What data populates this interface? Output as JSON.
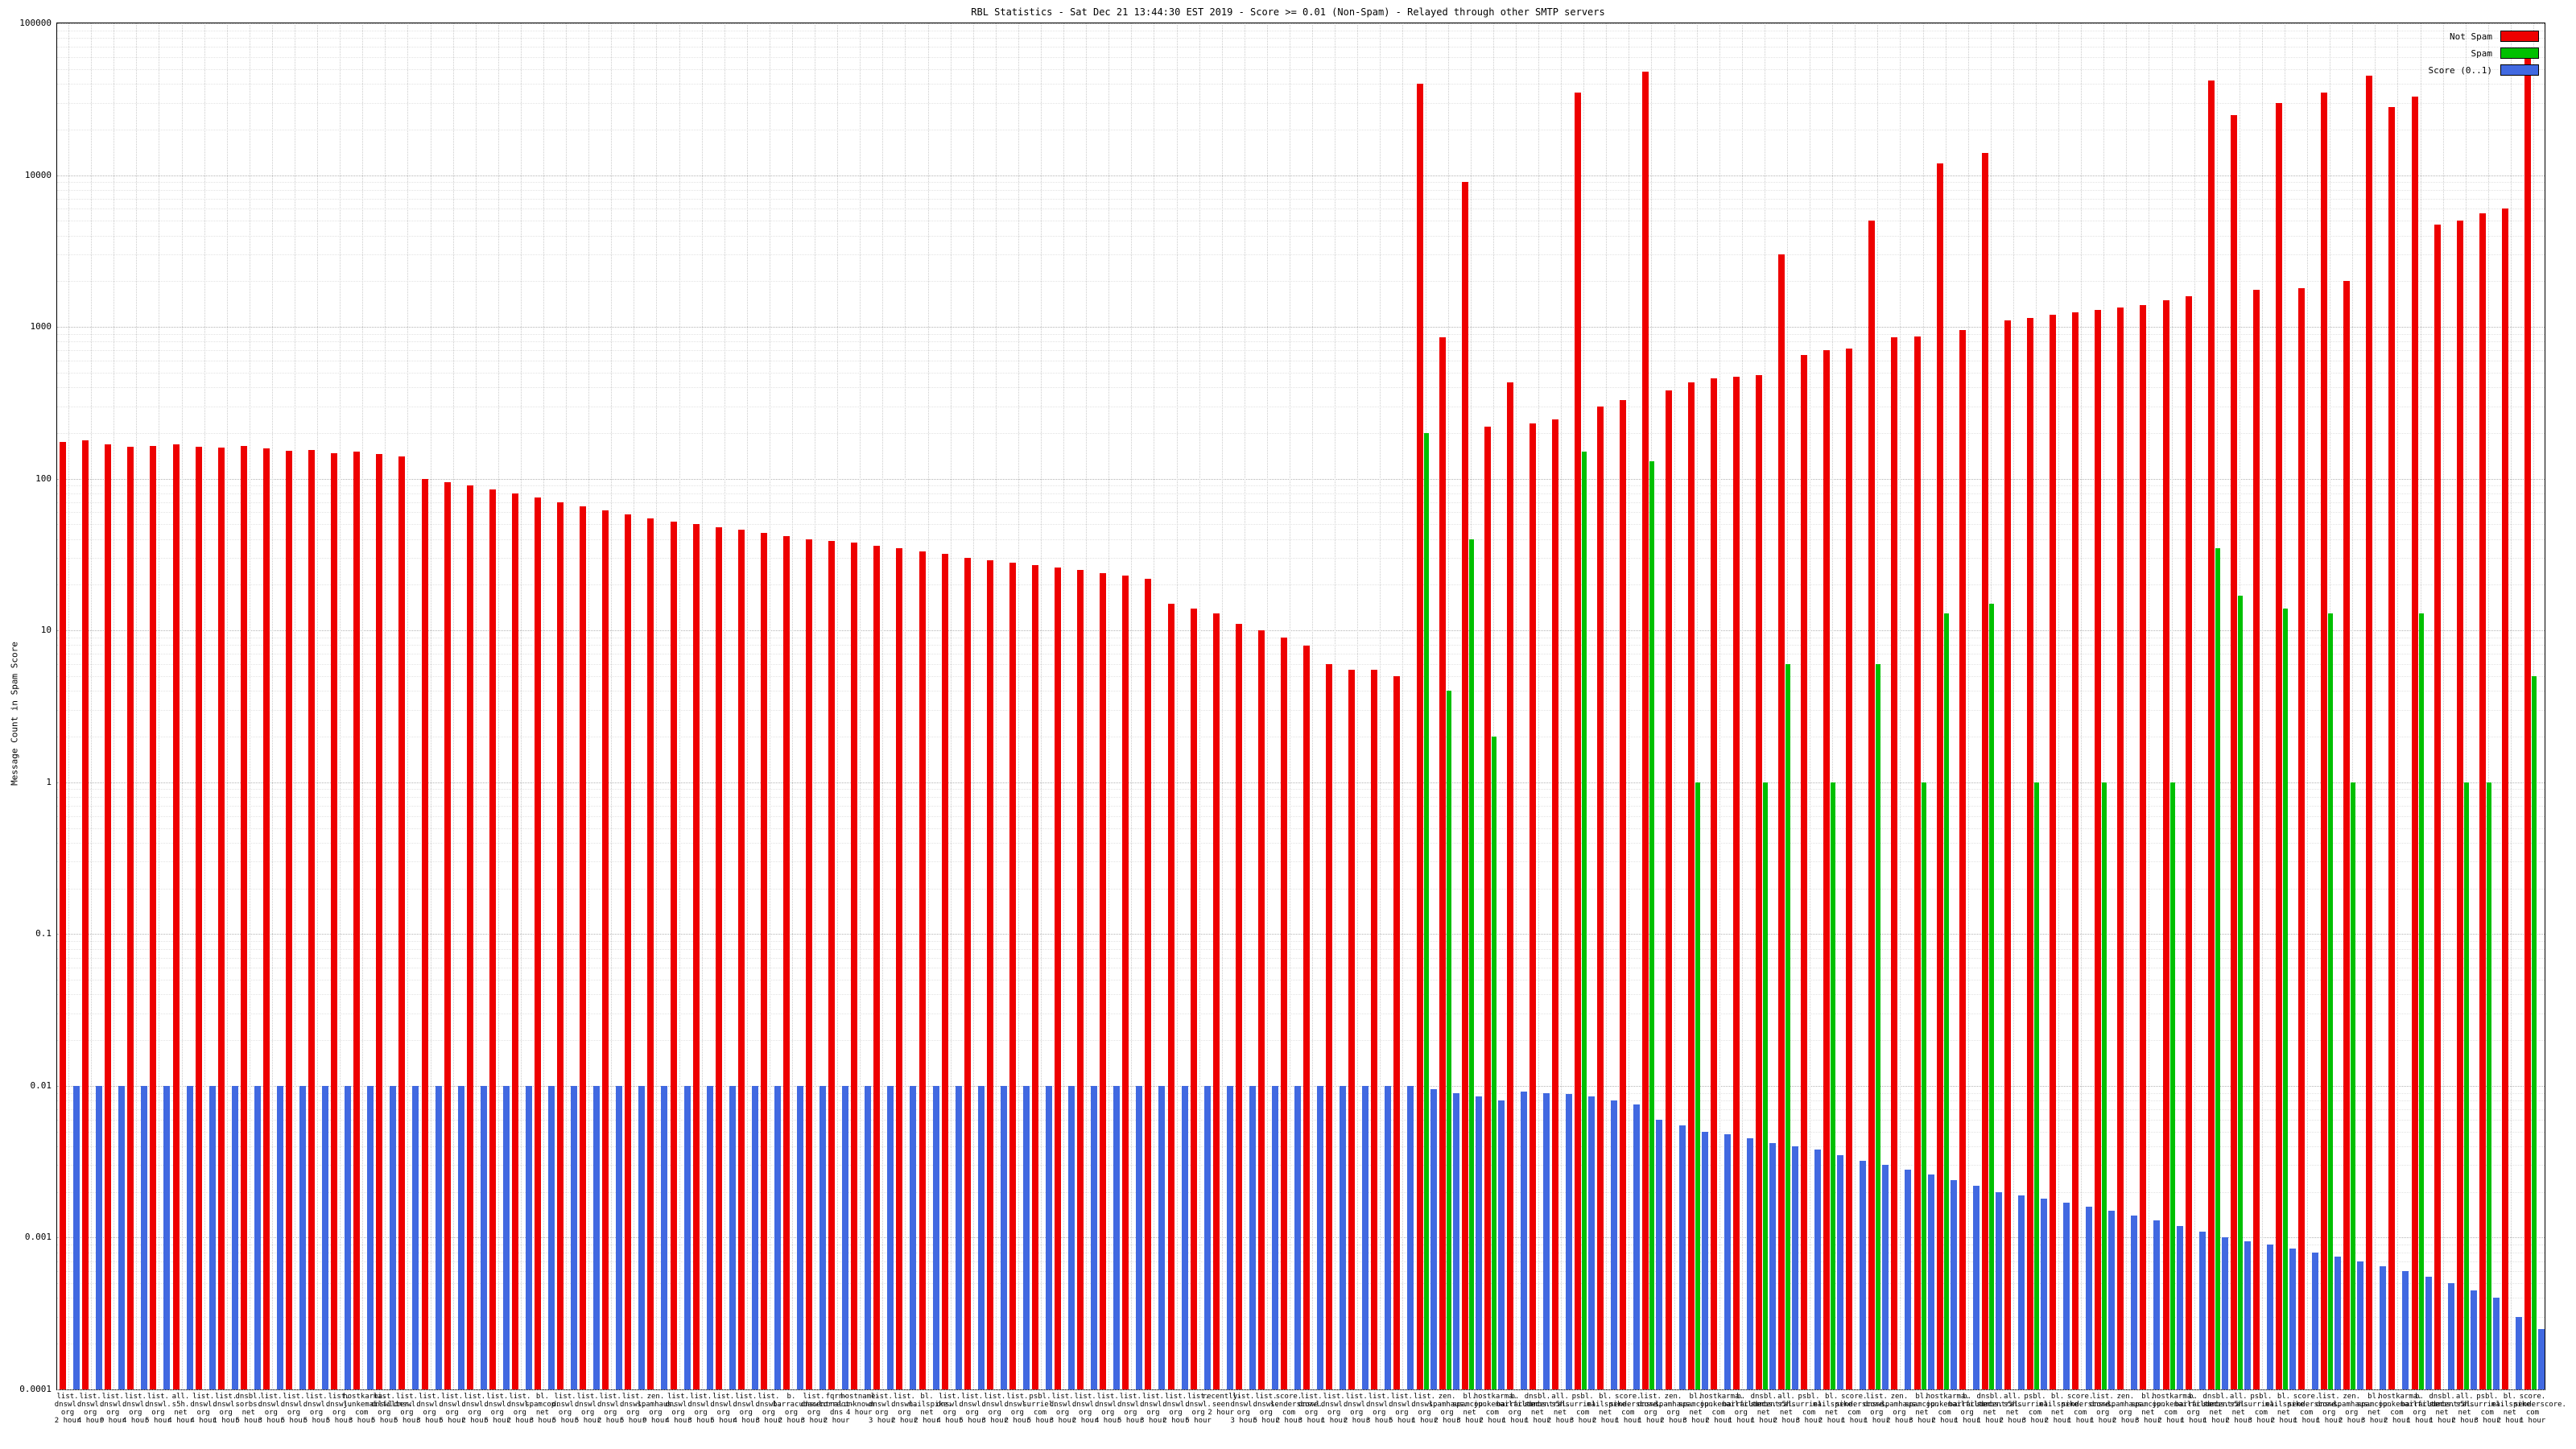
{
  "chart_data": {
    "type": "bar",
    "title": "RBL Statistics - Sat Dec 21 13:44:30 EST 2019 - Score >= 0.01 (Non-Spam) - Relayed through other SMTP servers",
    "ylabel": "Message Count in Spam Score",
    "xlabel": "",
    "y_scale": "log",
    "ylim": [
      0.0001,
      100000
    ],
    "yticks": [
      "0.0001",
      "0.001",
      "0.01",
      "0.1",
      "1",
      "10",
      "100",
      "1000",
      "10000",
      "100000"
    ],
    "grid": true,
    "legend_position": "top-right",
    "categories": [
      [
        "list.dnswl.org",
        "2 hour"
      ],
      [
        "list.dnswl.org",
        "4 hour"
      ],
      [
        "list.dnswl.org",
        "9 hour"
      ],
      [
        "list.dnswl.org",
        "4 hour"
      ],
      [
        "list.dnswl.org",
        "5 hour"
      ],
      [
        "all.s5h.net",
        "4 hour"
      ],
      [
        "list.dnswl.org",
        "4 hour"
      ],
      [
        "list.dnswl.org",
        "1 hour"
      ],
      [
        "dnsbl.sorbs.net",
        "5 hour"
      ],
      [
        "list.dnswl.org",
        "3 hour"
      ],
      [
        "list.dnswl.org",
        "5 hour"
      ],
      [
        "list.dnswl.org",
        "5 hour"
      ],
      [
        "list.dnswl.org",
        "5 hour"
      ],
      [
        "hostkarma.junkemailfilter.com",
        "3 hour"
      ],
      [
        "list.dnswl.org",
        "5 hour"
      ],
      [
        "list.dnswl.org",
        "5 hour"
      ],
      [
        "list.dnswl.org",
        "3 hour"
      ],
      [
        "list.dnswl.org",
        "5 hour"
      ],
      [
        "list.dnswl.org",
        "2 hour"
      ],
      [
        "list.dnswl.org",
        "5 hour"
      ],
      [
        "list.dnswl.org",
        "2 hour"
      ],
      [
        "bl.spamcop.net",
        "3 hour"
      ],
      [
        "list.dnswl.org",
        "5 hour"
      ],
      [
        "list.dnswl.org",
        "5 hour"
      ],
      [
        "list.dnswl.org",
        "2 hour"
      ],
      [
        "list.dnswl.org",
        "5 hour"
      ],
      [
        "zen.spamhaus.org",
        "9 hour"
      ],
      [
        "list.dnswl.org",
        "4 hour"
      ],
      [
        "list.dnswl.org",
        "3 hour"
      ],
      [
        "list.dnswl.org",
        "5 hour"
      ],
      [
        "list.dnswl.org",
        "4 hour"
      ],
      [
        "list.dnswl.org",
        "3 hour"
      ],
      [
        "b.barracudacentral.org",
        "2 hour"
      ],
      [
        "list.dnswl.org",
        "3 hour"
      ],
      [
        "fqrn-correct-dns",
        "2 hour"
      ],
      [
        "hostname-unknown",
        "4 hour"
      ],
      [
        "list.dnswl.org",
        "3 hour"
      ],
      [
        "list.dnswl.org",
        "2 hour"
      ],
      [
        "bl.mailspike.net",
        "2 hour"
      ],
      [
        "list.dnswl.org",
        "4 hour"
      ],
      [
        "list.dnswl.org",
        "5 hour"
      ],
      [
        "list.dnswl.org",
        "3 hour"
      ],
      [
        "list.dnswl.org",
        "2 hour"
      ],
      [
        "psbl.surriel.com",
        "5 hour"
      ],
      [
        "list.dnswl.org",
        "3 hour"
      ],
      [
        "list.dnswl.org",
        "2 hour"
      ],
      [
        "list.dnswl.org",
        "4 hour"
      ],
      [
        "list.dnswl.org",
        "5 hour"
      ],
      [
        "list.dnswl.org",
        "3 hour"
      ],
      [
        "list.dnswl.org",
        "2 hour"
      ],
      [
        "list.dnswl.org",
        "5 hour"
      ],
      [
        "recently-seen",
        "2 hour"
      ],
      [
        "list.dnswl.org",
        "3 hour"
      ],
      [
        "list.dnswl.org",
        "5 hour"
      ],
      [
        "score.senderscore.com",
        "2 hour"
      ],
      [
        "list.dnswl.org",
        "3 hour"
      ],
      [
        "list.dnswl.org",
        "1 hour"
      ],
      [
        "list.dnswl.org",
        "2 hour"
      ],
      [
        "list.dnswl.org",
        "3 hour"
      ],
      [
        "list.dnswl.org",
        "5 hour"
      ],
      [
        "list.dnswl.org",
        "1 hour"
      ],
      [
        "zen.spamhaus.org",
        "2 hour"
      ],
      [
        "bl.spamcop.net",
        "3 hour"
      ],
      [
        "hostkarma.junkemailfilter.com",
        "2 hour"
      ],
      [
        "b.barracudacentral.org",
        "1 hour"
      ],
      [
        "dnsbl.sorbs.net",
        "1 hour"
      ],
      [
        "all.s5h.net",
        "2 hour"
      ],
      [
        "psbl.surriel.com",
        "3 hour"
      ],
      [
        "bl.mailspike.net",
        "2 hour"
      ],
      [
        "score.senderscore.com",
        "1 hour"
      ],
      [
        "list.dnswl.org",
        "1 hour"
      ],
      [
        "zen.spamhaus.org",
        "2 hour"
      ],
      [
        "bl.spamcop.net",
        "3 hour"
      ],
      [
        "hostkarma.junkemailfilter.com",
        "2 hour"
      ],
      [
        "b.barracudacentral.org",
        "1 hour"
      ],
      [
        "dnsbl.sorbs.net",
        "1 hour"
      ],
      [
        "all.s5h.net",
        "2 hour"
      ],
      [
        "psbl.surriel.com",
        "3 hour"
      ],
      [
        "bl.mailspike.net",
        "2 hour"
      ],
      [
        "score.senderscore.com",
        "1 hour"
      ],
      [
        "list.dnswl.org",
        "1 hour"
      ],
      [
        "zen.spamhaus.org",
        "2 hour"
      ],
      [
        "bl.spamcop.net",
        "3 hour"
      ],
      [
        "hostkarma.junkemailfilter.com",
        "2 hour"
      ],
      [
        "b.barracudacentral.org",
        "1 hour"
      ],
      [
        "dnsbl.sorbs.net",
        "1 hour"
      ],
      [
        "all.s5h.net",
        "2 hour"
      ],
      [
        "psbl.surriel.com",
        "3 hour"
      ],
      [
        "bl.mailspike.net",
        "2 hour"
      ],
      [
        "score.senderscore.com",
        "1 hour"
      ],
      [
        "list.dnswl.org",
        "1 hour"
      ],
      [
        "zen.spamhaus.org",
        "2 hour"
      ],
      [
        "bl.spamcop.net",
        "3 hour"
      ],
      [
        "hostkarma.junkemailfilter.com",
        "2 hour"
      ],
      [
        "b.barracudacentral.org",
        "1 hour"
      ],
      [
        "dnsbl.sorbs.net",
        "1 hour"
      ],
      [
        "all.s5h.net",
        "2 hour"
      ],
      [
        "psbl.surriel.com",
        "3 hour"
      ],
      [
        "bl.mailspike.net",
        "2 hour"
      ],
      [
        "score.senderscore.com",
        "1 hour"
      ],
      [
        "list.dnswl.org",
        "1 hour"
      ],
      [
        "zen.spamhaus.org",
        "2 hour"
      ],
      [
        "bl.spamcop.net",
        "3 hour"
      ],
      [
        "hostkarma.junkemailfilter.com",
        "2 hour"
      ],
      [
        "b.barracudacentral.org",
        "1 hour"
      ],
      [
        "dnsbl.sorbs.net",
        "1 hour"
      ],
      [
        "all.s5h.net",
        "2 hour"
      ],
      [
        "psbl.surriel.com",
        "3 hour"
      ],
      [
        "bl.mailspike.net",
        "2 hour"
      ],
      [
        "score.senderscore.com",
        "1 hour"
      ]
    ],
    "series": [
      {
        "key": "not-spam",
        "name": "Not Spam",
        "color": "#ee0000",
        "values": [
          175,
          180,
          168,
          162,
          165,
          168,
          162,
          160,
          165,
          158,
          152,
          155,
          148,
          150,
          145,
          140,
          100,
          95,
          90,
          85,
          80,
          75,
          70,
          66,
          62,
          58,
          55,
          52,
          50,
          48,
          46,
          44,
          42,
          40,
          39,
          38,
          36,
          35,
          33,
          32,
          30,
          29,
          28,
          27,
          26,
          25,
          24,
          23,
          22,
          15,
          14,
          13,
          11,
          10,
          9,
          8,
          6,
          5.5,
          5.5,
          5,
          40000,
          850,
          9000,
          220,
          430,
          230,
          245,
          35000,
          300,
          330,
          48000,
          380,
          430,
          460,
          470,
          480,
          3000,
          650,
          700,
          720,
          5000,
          850,
          870,
          12000,
          950,
          14000,
          1100,
          1150,
          1200,
          1250,
          1300,
          1350,
          1400,
          1500,
          1600,
          42000,
          25000,
          1750,
          30000,
          1800,
          35000,
          2000,
          45000,
          28000,
          33000,
          4700,
          5000,
          5600,
          6000,
          60000
        ]
      },
      {
        "key": "spam",
        "name": "Spam",
        "color": "#00c000",
        "values": [
          null,
          null,
          null,
          null,
          null,
          null,
          null,
          null,
          null,
          null,
          null,
          null,
          null,
          null,
          null,
          null,
          null,
          null,
          null,
          null,
          null,
          null,
          null,
          null,
          null,
          null,
          null,
          null,
          null,
          null,
          null,
          null,
          null,
          null,
          null,
          null,
          null,
          null,
          null,
          null,
          null,
          null,
          null,
          null,
          null,
          null,
          null,
          null,
          null,
          null,
          null,
          null,
          null,
          null,
          null,
          null,
          null,
          null,
          null,
          null,
          200,
          4,
          40,
          2,
          null,
          null,
          null,
          150,
          null,
          null,
          130,
          null,
          1,
          null,
          null,
          1,
          6,
          null,
          1,
          null,
          6,
          null,
          1,
          13,
          null,
          15,
          null,
          1,
          null,
          null,
          1,
          null,
          null,
          1,
          null,
          35,
          17,
          null,
          14,
          null,
          13,
          1,
          null,
          null,
          13,
          null,
          1,
          1,
          null,
          5
        ]
      },
      {
        "key": "score",
        "name": "Score (0..1)",
        "color": "#4169e1",
        "values": [
          0.01,
          0.01,
          0.01,
          0.01,
          0.01,
          0.01,
          0.01,
          0.01,
          0.01,
          0.01,
          0.01,
          0.01,
          0.01,
          0.01,
          0.01,
          0.01,
          0.01,
          0.01,
          0.01,
          0.01,
          0.01,
          0.01,
          0.01,
          0.01,
          0.01,
          0.01,
          0.01,
          0.01,
          0.01,
          0.01,
          0.01,
          0.01,
          0.01,
          0.01,
          0.01,
          0.01,
          0.01,
          0.01,
          0.01,
          0.01,
          0.01,
          0.01,
          0.01,
          0.01,
          0.01,
          0.01,
          0.01,
          0.01,
          0.01,
          0.01,
          0.01,
          0.01,
          0.01,
          0.01,
          0.01,
          0.01,
          0.01,
          0.01,
          0.01,
          0.01,
          0.0095,
          0.009,
          0.0085,
          0.008,
          0.0092,
          0.009,
          0.0088,
          0.0085,
          0.008,
          0.0075,
          0.006,
          0.0055,
          0.005,
          0.0048,
          0.0045,
          0.0042,
          0.004,
          0.0038,
          0.0035,
          0.0032,
          0.003,
          0.0028,
          0.0026,
          0.0024,
          0.0022,
          0.002,
          0.0019,
          0.0018,
          0.0017,
          0.0016,
          0.0015,
          0.0014,
          0.0013,
          0.0012,
          0.0011,
          0.001,
          0.00095,
          0.0009,
          0.00085,
          0.0008,
          0.00075,
          0.0007,
          0.00065,
          0.0006,
          0.00055,
          0.0005,
          0.00045,
          0.0004,
          0.0003,
          0.00025
        ]
      }
    ]
  }
}
